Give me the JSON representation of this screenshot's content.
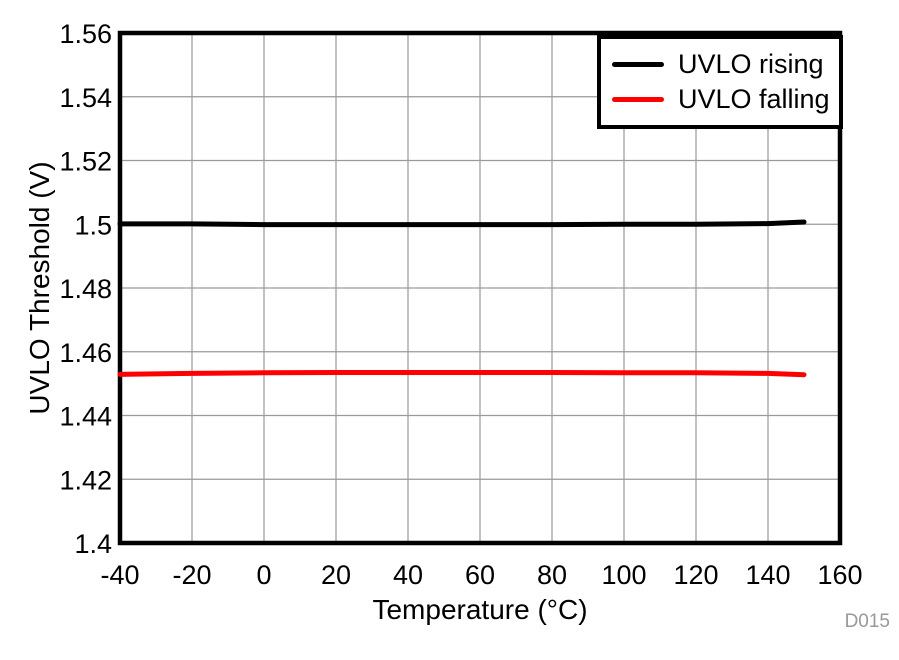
{
  "watermark": "D015",
  "colors": {
    "background": "#ffffff",
    "frame": "#000000",
    "grid": "#9a9a9a",
    "tick_text": "#000000",
    "watermark_text": "#999999",
    "series_rising": "#000000",
    "series_falling": "#ff0000"
  },
  "chart_data": {
    "type": "line",
    "title": "",
    "xlabel": "Temperature (°C)",
    "ylabel": "UVLO Threshold (V)",
    "xlim": [
      -40,
      160
    ],
    "ylim": [
      1.4,
      1.56
    ],
    "x_ticks": [
      -40,
      -20,
      0,
      20,
      40,
      60,
      80,
      100,
      120,
      140,
      160
    ],
    "y_ticks": [
      1.4,
      1.42,
      1.44,
      1.46,
      1.48,
      1.5,
      1.52,
      1.54,
      1.56
    ],
    "grid": true,
    "legend_position": "top-right",
    "series": [
      {
        "name": "UVLO rising",
        "color": "#000000",
        "x": [
          -40,
          -20,
          0,
          20,
          40,
          60,
          80,
          100,
          120,
          140,
          150
        ],
        "y": [
          1.5001,
          1.5001,
          1.4999,
          1.4999,
          1.4999,
          1.4999,
          1.4999,
          1.5,
          1.5,
          1.5002,
          1.5007
        ]
      },
      {
        "name": "UVLO falling",
        "color": "#ff0000",
        "x": [
          -40,
          -20,
          0,
          20,
          40,
          60,
          80,
          100,
          120,
          140,
          150
        ],
        "y": [
          1.4529,
          1.4532,
          1.4534,
          1.4535,
          1.4535,
          1.4535,
          1.4535,
          1.4534,
          1.4534,
          1.4532,
          1.4528
        ]
      }
    ]
  }
}
